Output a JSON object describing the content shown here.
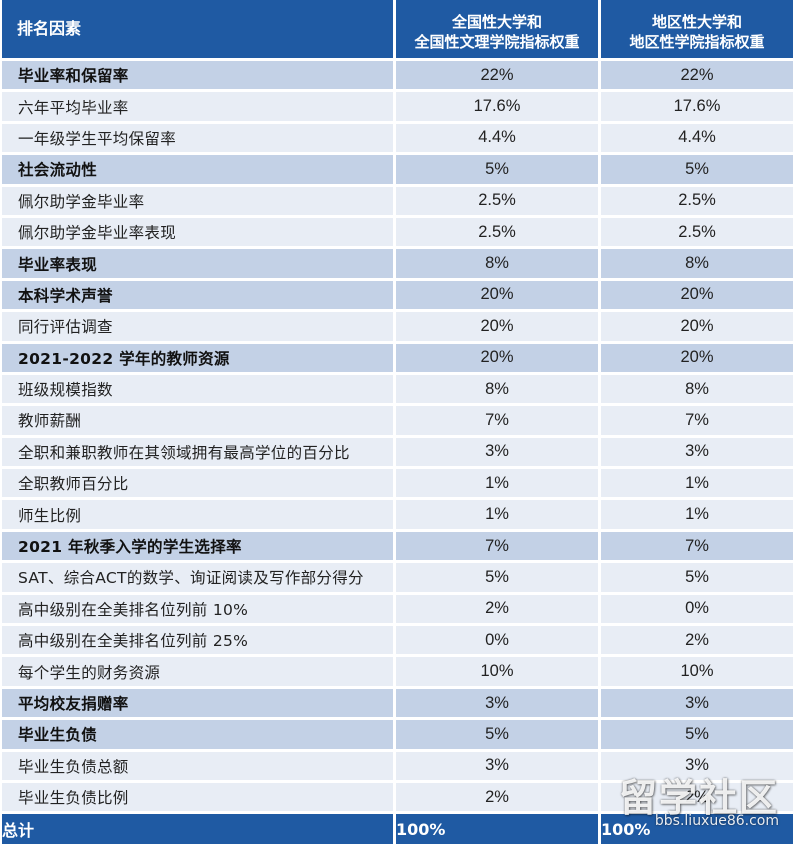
{
  "table": {
    "header": {
      "factor": "排名因素",
      "national_line1": "全国性大学和",
      "national_line2": "全国性文理学院指标权重",
      "regional_line1": "地区性大学和",
      "regional_line2": "地区性学院指标权重"
    },
    "rows": [
      {
        "label": "毕业率和保留率",
        "national": "22%",
        "regional": "22%",
        "section": true
      },
      {
        "label": "六年平均毕业率",
        "national": "17.6%",
        "regional": "17.6%",
        "section": false
      },
      {
        "label": "一年级学生平均保留率",
        "national": "4.4%",
        "regional": "4.4%",
        "section": false
      },
      {
        "label": "社会流动性",
        "national": "5%",
        "regional": "5%",
        "section": true
      },
      {
        "label": "佩尔助学金毕业率",
        "national": "2.5%",
        "regional": "2.5%",
        "section": false
      },
      {
        "label": "佩尔助学金毕业率表现",
        "national": "2.5%",
        "regional": "2.5%",
        "section": false
      },
      {
        "label": "毕业率表现",
        "national": "8%",
        "regional": "8%",
        "section": true
      },
      {
        "label": "本科学术声誉",
        "national": "20%",
        "regional": "20%",
        "section": true
      },
      {
        "label": "同行评估调查",
        "national": "20%",
        "regional": "20%",
        "section": false
      },
      {
        "label": "2021-2022 学年的教师资源",
        "national": "20%",
        "regional": "20%",
        "section": true
      },
      {
        "label": "班级规模指数",
        "national": "8%",
        "regional": "8%",
        "section": false
      },
      {
        "label": "教师薪酬",
        "national": "7%",
        "regional": "7%",
        "section": false
      },
      {
        "label": "全职和兼职教师在其领域拥有最高学位的百分比",
        "national": "3%",
        "regional": "3%",
        "section": false
      },
      {
        "label": "全职教师百分比",
        "national": "1%",
        "regional": "1%",
        "section": false
      },
      {
        "label": "师生比例",
        "national": "1%",
        "regional": "1%",
        "section": false
      },
      {
        "label": "2021 年秋季入学的学生选择率",
        "national": "7%",
        "regional": "7%",
        "section": true
      },
      {
        "label": "SAT、综合ACT的数学、询证阅读及写作部分得分",
        "national": "5%",
        "regional": "5%",
        "section": false
      },
      {
        "label": "高中级别在全美排名位列前 10%",
        "national": "2%",
        "regional": "0%",
        "section": false
      },
      {
        "label": "高中级别在全美排名位列前 25%",
        "national": "0%",
        "regional": "2%",
        "section": false
      },
      {
        "label": "每个学生的财务资源",
        "national": "10%",
        "regional": "10%",
        "section": false
      },
      {
        "label": "平均校友捐赠率",
        "national": "3%",
        "regional": "3%",
        "section": true
      },
      {
        "label": "毕业生负债",
        "national": "5%",
        "regional": "5%",
        "section": true
      },
      {
        "label": "毕业生负债总额",
        "national": "3%",
        "regional": "3%",
        "section": false
      },
      {
        "label": "毕业生负债比例",
        "national": "2%",
        "regional": "2%",
        "section": false
      }
    ],
    "total": {
      "label": "总计",
      "national": "100%",
      "regional": "100%"
    }
  },
  "watermark": {
    "main": "留学社区",
    "url": "bbs.liuxue86.com"
  }
}
